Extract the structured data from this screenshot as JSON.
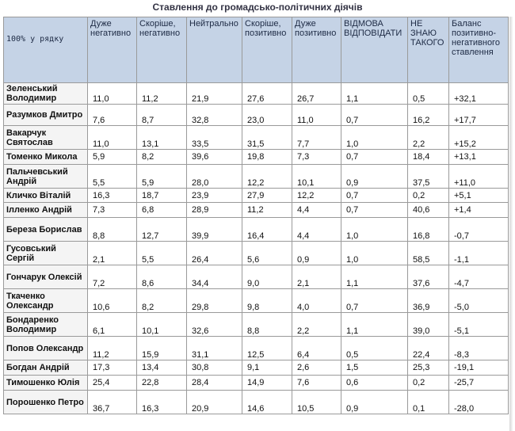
{
  "title": "Ставлення до громадсько-політичних діячів",
  "headers": [
    "100% у рядку",
    "Дуже негативно",
    "Скоріше, негативно",
    "Нейтрально",
    "Скоріше, позитивно",
    "Дуже позитивно",
    "ВІДМОВА ВІДПОВІДАТИ",
    "НЕ ЗНАЮ ТАКОГО",
    "Баланс позитивно-негативного ставлення"
  ],
  "rows": [
    {
      "name": "Зеленський Володимир",
      "values": [
        "11,0",
        "11,2",
        "21,9",
        "27,6",
        "26,7",
        "1,1",
        "0,5",
        "+32,1"
      ]
    },
    {
      "name": "Разумков Дмитро",
      "values": [
        "7,6",
        "8,7",
        "32,8",
        "23,0",
        "11,0",
        "0,7",
        "16,2",
        "+17,7"
      ]
    },
    {
      "name": "Вакарчук Святослав",
      "values": [
        "11,0",
        "13,1",
        "33,5",
        "31,5",
        "7,7",
        "1,0",
        "2,2",
        "+15,2"
      ]
    },
    {
      "name": "Томенко Микола",
      "values": [
        "5,9",
        "8,2",
        "39,6",
        "19,8",
        "7,3",
        "0,7",
        "18,4",
        "+13,1"
      ]
    },
    {
      "name": "Пальчевський Андрій",
      "values": [
        "5,5",
        "5,9",
        "28,0",
        "12,2",
        "10,1",
        "0,9",
        "37,5",
        "+11,0"
      ]
    },
    {
      "name": "Кличко Віталій",
      "values": [
        "16,3",
        "18,7",
        "23,9",
        "27,9",
        "12,2",
        "0,7",
        "0,2",
        "+5,1"
      ]
    },
    {
      "name": "Ілленко Андрій",
      "values": [
        "7,3",
        "6,8",
        "28,9",
        "11,2",
        "4,4",
        "0,7",
        "40,6",
        "+1,4"
      ]
    },
    {
      "name": "Береза Борислав",
      "values": [
        "8,8",
        "12,7",
        "39,9",
        "16,4",
        "4,4",
        "1,0",
        "16,8",
        "-0,7"
      ]
    },
    {
      "name": "Гусовський Сергій",
      "values": [
        "2,1",
        "5,5",
        "26,4",
        "5,6",
        "0,9",
        "1,0",
        "58,5",
        "-1,1"
      ]
    },
    {
      "name": "Гончарук Олексій",
      "values": [
        "7,2",
        "8,6",
        "34,4",
        "9,0",
        "2,1",
        "1,1",
        "37,6",
        "-4,7"
      ]
    },
    {
      "name": "Ткаченко Олександр",
      "values": [
        "10,6",
        "8,2",
        "29,8",
        "9,8",
        "4,0",
        "0,7",
        "36,9",
        "-5,0"
      ]
    },
    {
      "name": "Бондаренко Володимир",
      "values": [
        "6,1",
        "10,1",
        "32,6",
        "8,8",
        "2,2",
        "1,1",
        "39,0",
        "-5,1"
      ]
    },
    {
      "name": "Попов Олександр",
      "values": [
        "11,2",
        "15,9",
        "31,1",
        "12,5",
        "6,4",
        "0,5",
        "22,4",
        "-8,3"
      ]
    },
    {
      "name": "Богдан Андрій",
      "values": [
        "17,3",
        "13,4",
        "30,8",
        "9,1",
        "2,6",
        "1,5",
        "25,3",
        "-19,1"
      ]
    },
    {
      "name": "Тимошенко Юлія",
      "values": [
        "25,4",
        "22,8",
        "28,4",
        "14,9",
        "7,6",
        "0,6",
        "0,2",
        "-25,7"
      ]
    },
    {
      "name": "Порошенко Петро",
      "values": [
        "36,7",
        "16,3",
        "20,9",
        "14,6",
        "10,5",
        "0,9",
        "0,1",
        "-28,0"
      ]
    }
  ]
}
